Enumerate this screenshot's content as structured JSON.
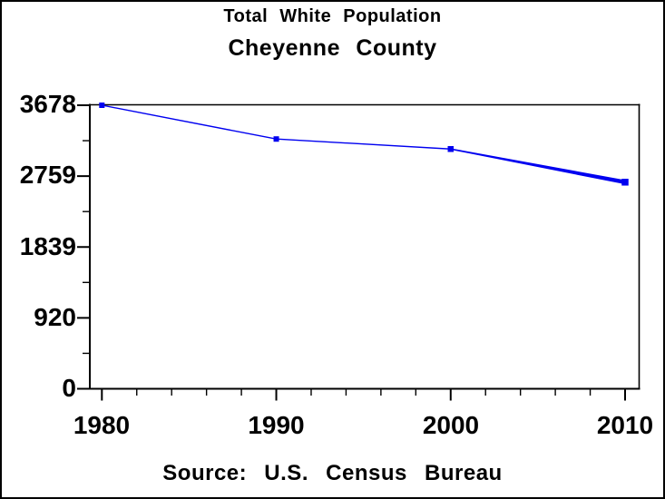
{
  "chart_data": {
    "type": "line",
    "title": "Total White Population",
    "subtitle": "Cheyenne County",
    "footnote": "Source: U.S. Census Bureau",
    "series": [
      {
        "name": "Total White Population",
        "x": [
          1980,
          1990,
          2000,
          2010
        ],
        "values": [
          3678,
          3240,
          3110,
          2680
        ]
      }
    ],
    "x_tick_labels": [
      "1980",
      "1990",
      "2000",
      "2010"
    ],
    "y_tick_labels": [
      "3678",
      "2759",
      "1839",
      "920",
      "0"
    ],
    "xlim": [
      1980,
      2010
    ],
    "ylim": [
      0,
      3678
    ],
    "y_major_divisions": 4,
    "y_minor_per_interval": 1,
    "x_minor_step_years": 2,
    "grid": false,
    "legend": "none",
    "marker": "square",
    "line_color": "#0000f0",
    "axis_color": "#000000",
    "background_color": "#ffffff"
  }
}
